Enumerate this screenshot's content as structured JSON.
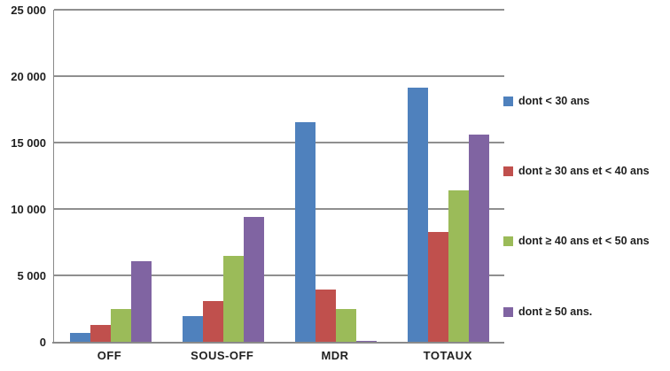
{
  "chart_data": {
    "type": "bar",
    "title": "",
    "xlabel": "",
    "ylabel": "",
    "categories": [
      "OFF",
      "SOUS-OFF",
      "MDR",
      "TOTAUX"
    ],
    "series": [
      {
        "name": "dont < 30 ans",
        "color": "#4F81BD",
        "values": [
          650,
          1950,
          16550,
          19150
        ]
      },
      {
        "name": "dont ≥ 30 ans et < 40 ans",
        "color": "#C0504D",
        "values": [
          1250,
          3100,
          3950,
          8300
        ]
      },
      {
        "name": "dont ≥ 40 ans et < 50 ans",
        "color": "#9BBB59",
        "values": [
          2500,
          6450,
          2450,
          11400
        ]
      },
      {
        "name": "dont ≥ 50 ans.",
        "color": "#8064A2",
        "values": [
          6100,
          9400,
          100,
          15600
        ]
      }
    ],
    "ylim": [
      0,
      25000
    ],
    "ytick_interval": 5000,
    "yticks": [
      {
        "value": 0,
        "label": "0"
      },
      {
        "value": 5000,
        "label": "5 000"
      },
      {
        "value": 10000,
        "label": "10 000"
      },
      {
        "value": 15000,
        "label": "15 000"
      },
      {
        "value": 20000,
        "label": "20 000"
      },
      {
        "value": 25000,
        "label": "25 000"
      }
    ],
    "grid": true,
    "legend_position": "right"
  },
  "colors": {
    "background": "#ffffff",
    "gridline": "#8f8f8f",
    "axis": "#8a8a8a",
    "text": "#1f1f1f"
  }
}
